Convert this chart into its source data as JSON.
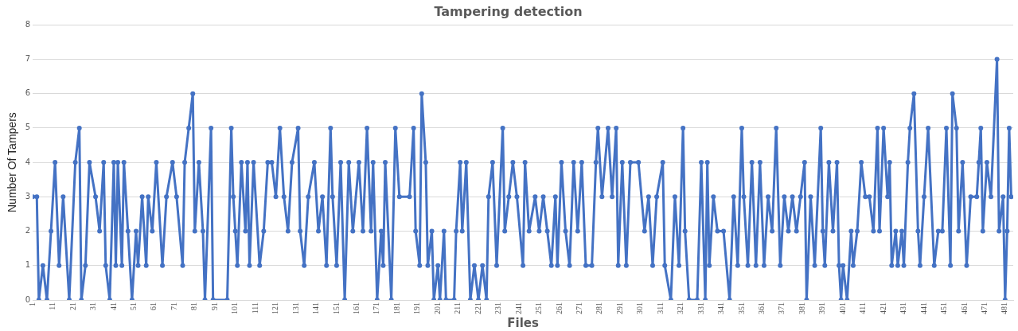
{
  "chart_data": {
    "type": "line",
    "title": "Tampering detection",
    "xlabel": "Files",
    "ylabel": "Number Of Tampers",
    "series": [
      {
        "color": "#4472c4",
        "x": [
          1,
          3,
          4,
          6,
          8,
          10,
          12,
          14,
          16,
          19,
          22,
          24,
          25,
          27,
          29,
          32,
          34,
          36,
          37,
          39,
          41,
          42,
          43,
          45,
          46,
          48,
          50,
          52,
          53,
          55,
          57,
          58,
          60,
          62,
          65,
          67,
          70,
          72,
          75,
          76,
          78,
          80,
          81,
          83,
          85,
          86,
          89,
          90,
          97,
          99,
          100,
          101,
          102,
          104,
          106,
          107,
          108,
          110,
          113,
          115,
          117,
          119,
          121,
          123,
          125,
          127,
          129,
          132,
          133,
          135,
          137,
          140,
          142,
          144,
          146,
          148,
          149,
          151,
          153,
          155,
          157,
          159,
          162,
          164,
          166,
          168,
          169,
          171,
          173,
          174,
          175,
          178,
          180,
          182,
          187,
          189,
          190,
          192,
          193,
          195,
          196,
          198,
          199,
          201,
          202,
          204,
          205,
          209,
          210,
          212,
          213,
          215,
          217,
          219,
          221,
          223,
          225,
          226,
          228,
          230,
          233,
          234,
          236,
          238,
          240,
          243,
          244,
          246,
          249,
          251,
          253,
          255,
          257,
          259,
          260,
          262,
          264,
          266,
          268,
          270,
          272,
          274,
          277,
          279,
          280,
          282,
          285,
          287,
          289,
          290,
          292,
          294,
          296,
          300,
          303,
          305,
          307,
          309,
          312,
          313,
          316,
          318,
          320,
          322,
          323,
          325,
          329,
          331,
          333,
          334,
          335,
          337,
          339,
          342,
          345,
          347,
          349,
          351,
          352,
          354,
          356,
          358,
          360,
          362,
          364,
          366,
          368,
          370,
          372,
          374,
          376,
          378,
          380,
          382,
          383,
          385,
          387,
          390,
          391,
          392,
          394,
          396,
          398,
          399,
          400,
          401,
          403,
          405,
          406,
          408,
          410,
          412,
          414,
          416,
          418,
          419,
          421,
          423,
          424,
          425,
          427,
          428,
          430,
          431,
          433,
          434,
          436,
          438,
          439,
          441,
          443,
          446,
          448,
          450,
          452,
          454,
          455,
          457,
          458,
          460,
          462,
          464,
          467,
          468,
          469,
          470,
          472,
          474,
          477,
          478,
          480,
          481,
          482,
          483,
          484
        ],
        "values": [
          3,
          3,
          0,
          1,
          0,
          2,
          4,
          1,
          3,
          0,
          4,
          5,
          0,
          1,
          4,
          3,
          2,
          4,
          1,
          0,
          4,
          1,
          4,
          1,
          4,
          2,
          0,
          2,
          1,
          3,
          1,
          3,
          2,
          4,
          1,
          3,
          4,
          3,
          1,
          4,
          5,
          6,
          2,
          4,
          2,
          0,
          5,
          0,
          0,
          5,
          3,
          2,
          1,
          4,
          2,
          4,
          1,
          4,
          1,
          2,
          4,
          4,
          3,
          5,
          3,
          2,
          4,
          5,
          2,
          1,
          3,
          4,
          2,
          3,
          1,
          5,
          3,
          1,
          4,
          0,
          4,
          2,
          4,
          2,
          5,
          2,
          4,
          0,
          2,
          1,
          4,
          0,
          5,
          3,
          3,
          5,
          2,
          1,
          6,
          4,
          1,
          2,
          0,
          1,
          0,
          2,
          0,
          0,
          2,
          4,
          2,
          4,
          0,
          1,
          0,
          1,
          0,
          3,
          4,
          1,
          5,
          2,
          3,
          4,
          3,
          1,
          4,
          2,
          3,
          2,
          3,
          2,
          1,
          3,
          1,
          4,
          2,
          1,
          4,
          2,
          4,
          1,
          1,
          4,
          5,
          3,
          5,
          3,
          5,
          1,
          4,
          1,
          4,
          4,
          2,
          3,
          1,
          3,
          4,
          1,
          0,
          3,
          1,
          5,
          2,
          0,
          0,
          4,
          0,
          4,
          1,
          3,
          2,
          2,
          0,
          3,
          1,
          5,
          3,
          1,
          4,
          1,
          4,
          1,
          3,
          2,
          5,
          1,
          3,
          2,
          3,
          2,
          3,
          4,
          0,
          3,
          1,
          5,
          2,
          1,
          4,
          2,
          4,
          1,
          0,
          1,
          0,
          2,
          1,
          2,
          4,
          3,
          3,
          2,
          5,
          2,
          5,
          3,
          4,
          1,
          2,
          1,
          2,
          1,
          4,
          5,
          6,
          2,
          1,
          3,
          5,
          1,
          2,
          2,
          5,
          1,
          6,
          5,
          2,
          4,
          1,
          3,
          3,
          4,
          5,
          2,
          4,
          3,
          7,
          2,
          3,
          0,
          2,
          5,
          3
        ]
      }
    ],
    "xlim": [
      1,
      485
    ],
    "xticks": [
      1,
      11,
      21,
      31,
      41,
      51,
      61,
      71,
      81,
      91,
      101,
      111,
      121,
      131,
      141,
      151,
      161,
      171,
      181,
      191,
      201,
      211,
      221,
      231,
      241,
      251,
      261,
      271,
      281,
      291,
      301,
      311,
      321,
      331,
      341,
      351,
      361,
      371,
      381,
      391,
      401,
      411,
      421,
      431,
      441,
      451,
      461,
      471,
      481
    ],
    "ylim": [
      0,
      8
    ],
    "yticks": [
      0,
      1,
      2,
      3,
      4,
      5,
      6,
      7,
      8
    ],
    "grid": "y",
    "marker": "circle",
    "line_style": "solid"
  }
}
